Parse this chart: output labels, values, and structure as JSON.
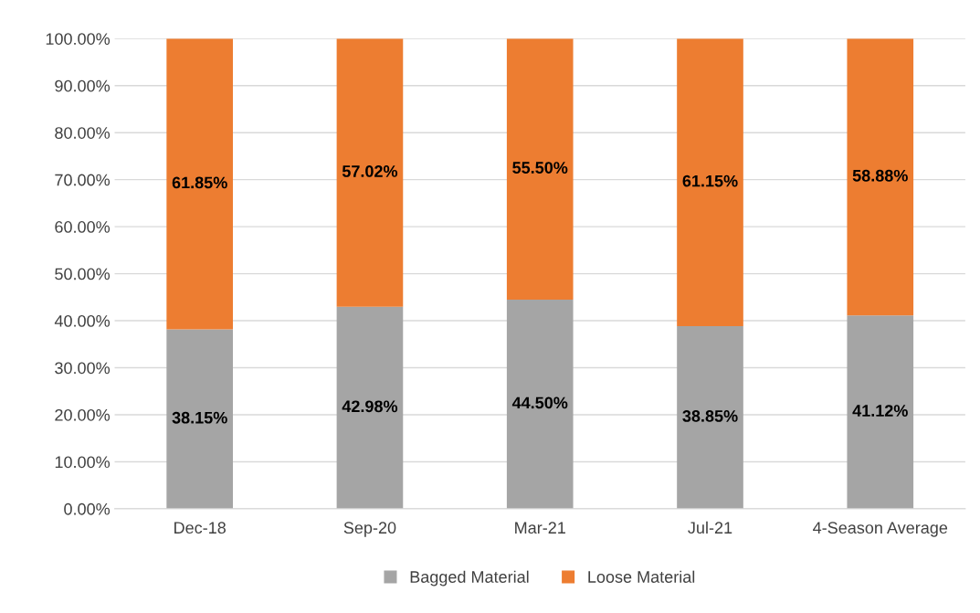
{
  "chart_data": {
    "type": "bar",
    "stacked": true,
    "categories": [
      "Dec-18",
      "Sep-20",
      "Mar-21",
      "Jul-21",
      "4-Season Average"
    ],
    "series": [
      {
        "name": "Bagged Material",
        "color": "#a5a5a5",
        "values": [
          38.15,
          42.98,
          44.5,
          38.85,
          41.12
        ],
        "value_labels": [
          "38.15%",
          "42.98%",
          "44.50%",
          "38.85%",
          "41.12%"
        ]
      },
      {
        "name": "Loose Material",
        "color": "#ed7d31",
        "values": [
          61.85,
          57.02,
          55.5,
          61.15,
          58.88
        ],
        "value_labels": [
          "61.85%",
          "57.02%",
          "55.50%",
          "61.15%",
          "58.88%"
        ]
      }
    ],
    "ylim": [
      0,
      100
    ],
    "yticks": [
      {
        "value": 0,
        "label": "0.00%"
      },
      {
        "value": 10,
        "label": "10.00%"
      },
      {
        "value": 20,
        "label": "20.00%"
      },
      {
        "value": 30,
        "label": "30.00%"
      },
      {
        "value": 40,
        "label": "40.00%"
      },
      {
        "value": 50,
        "label": "50.00%"
      },
      {
        "value": 60,
        "label": "60.00%"
      },
      {
        "value": 70,
        "label": "70.00%"
      },
      {
        "value": 80,
        "label": "80.00%"
      },
      {
        "value": 90,
        "label": "90.00%"
      },
      {
        "value": 100,
        "label": "100.00%"
      }
    ],
    "grid": "y",
    "legend": "bottom"
  }
}
